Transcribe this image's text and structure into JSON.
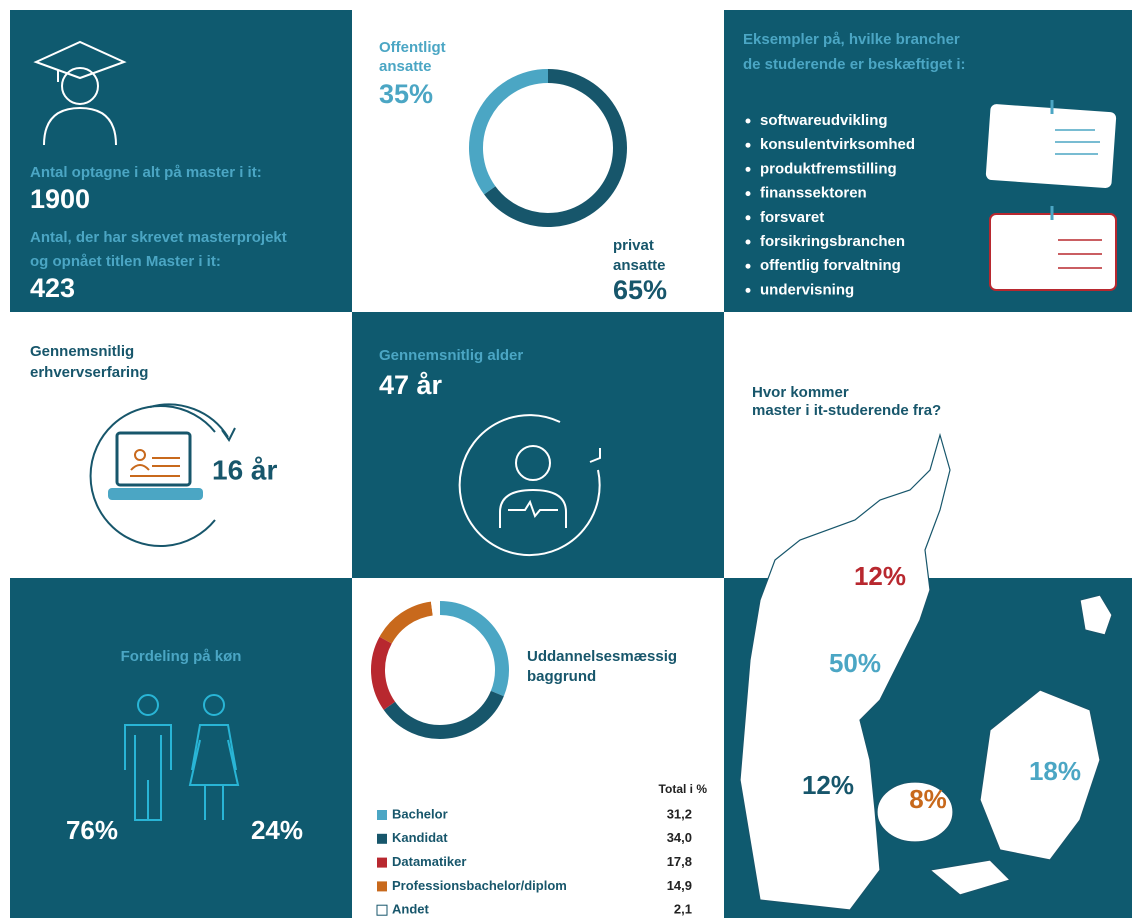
{
  "admissions": {
    "label1": "Antal optagne i alt på master i it:",
    "value1": "1900",
    "label2": [
      "Antal, der har skrevet masterprojekt",
      "og opnået titlen Master i it:"
    ],
    "value2": "423"
  },
  "employment": {
    "type": "pie",
    "categories": [
      [
        "Offentligt",
        "ansatte"
      ],
      [
        "privat",
        "ansatte"
      ]
    ],
    "values": [
      35,
      65
    ],
    "value_labels": [
      "35%",
      "65%"
    ],
    "colors": [
      "#4ba6c4",
      "#17566b"
    ]
  },
  "industries": {
    "title": [
      "Eksempler på, hvilke brancher",
      "de studerende er beskæftiget i:"
    ],
    "items": [
      "softwareudvikling",
      "konsulentvirksomhed",
      "produktfremstilling",
      "finanssektoren",
      "forsvaret",
      "forsikringsbranchen",
      "offentlig forvaltning",
      "undervisning"
    ]
  },
  "experience": {
    "title": [
      "Gennemsnitlig",
      "erhvervserfaring"
    ],
    "value": "16 år"
  },
  "age": {
    "title": "Gennemsnitlig alder",
    "value": "47 år"
  },
  "regions": {
    "title": [
      "Hvor kommer",
      "master i it-studerende fra?"
    ],
    "values": [
      12,
      50,
      12,
      8,
      18
    ],
    "value_labels": [
      "12%",
      "50%",
      "12%",
      "8%",
      "18%"
    ],
    "colors": [
      "#b8282f",
      "#4ba6c4",
      "#17566b",
      "#c8691c",
      "#4ba6c4"
    ]
  },
  "gender": {
    "title": "Fordeling på køn",
    "values": [
      76,
      24
    ],
    "value_labels": [
      "76%",
      "24%"
    ]
  },
  "education": {
    "type": "pie",
    "title": [
      "Uddannelsesmæssig",
      "baggrund"
    ],
    "column_header": "Total i %",
    "categories": [
      "Bachelor",
      "Kandidat",
      "Datamatiker",
      "Professionsbachelor/diplom",
      "Andet"
    ],
    "values": [
      31.2,
      34.0,
      17.8,
      14.9,
      2.1
    ],
    "value_labels": [
      "31,2",
      "34,0",
      "17,8",
      "14,9",
      "2,1"
    ],
    "colors": [
      "#4ba6c4",
      "#17566b",
      "#b8282f",
      "#c8691c",
      "#ffffff"
    ]
  }
}
